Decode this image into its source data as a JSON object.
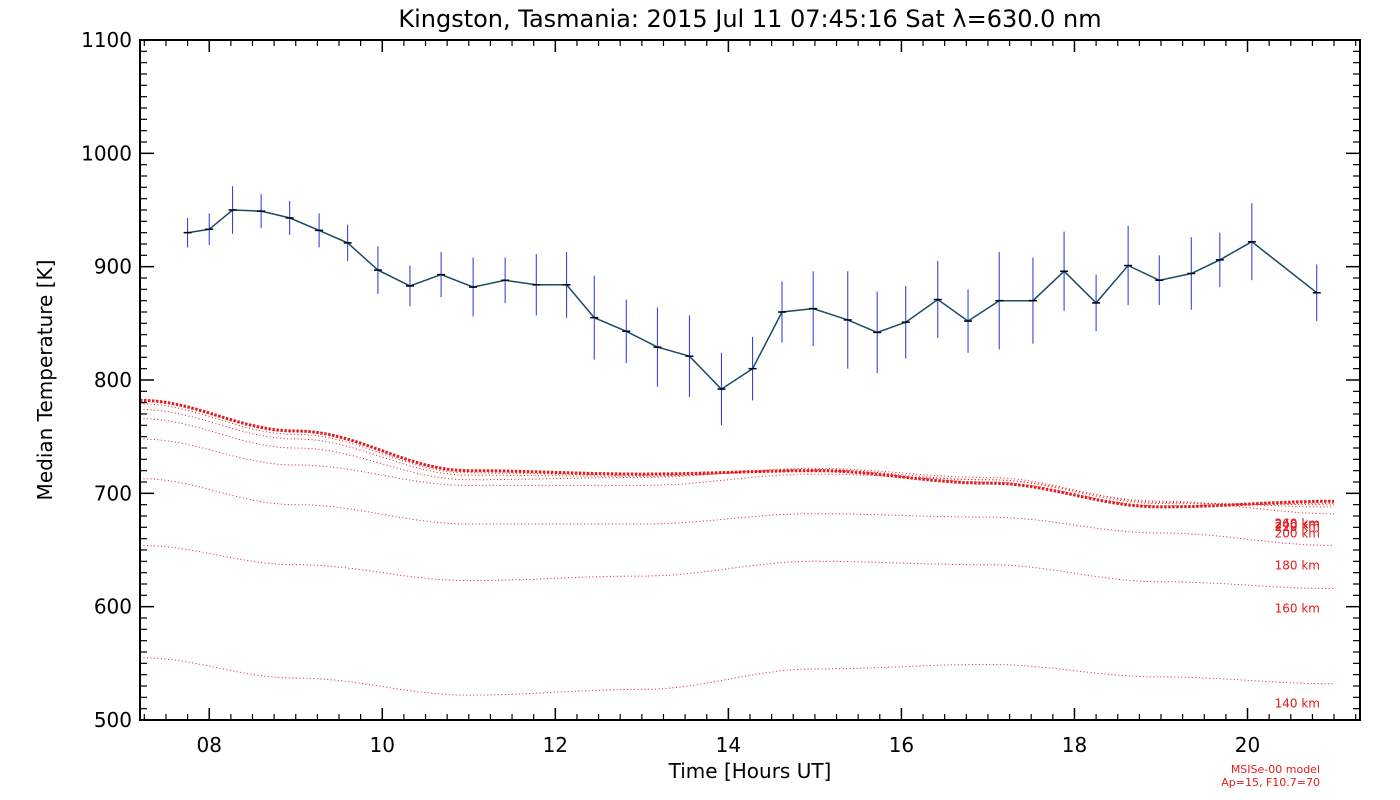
{
  "chart_data": {
    "type": "line",
    "title": "Kingston, Tasmania: 2015 Jul 11 07:45:16 Sat λ=630.0 nm",
    "xlabel": "Time [Hours UT]",
    "ylabel": "Median Temperature [K]",
    "xlim": [
      7.2,
      21.3
    ],
    "ylim": [
      500,
      1100
    ],
    "x_ticks": [
      8,
      10,
      12,
      14,
      16,
      18,
      20
    ],
    "x_tick_labels": [
      "08",
      "10",
      "12",
      "14",
      "16",
      "18",
      "20"
    ],
    "y_ticks": [
      500,
      600,
      700,
      800,
      900,
      1000,
      1100
    ],
    "y_tick_labels": [
      "500",
      "600",
      "700",
      "800",
      "900",
      "1000",
      "1100"
    ],
    "grid": false,
    "colors": {
      "observed_line": "#1a4a66",
      "error_bar": "#2233dd",
      "marker": "#000000",
      "model": "#e41a1c"
    },
    "series": [
      {
        "kind": "observed",
        "x": [
          7.75,
          8.0,
          8.27,
          8.6,
          8.93,
          9.27,
          9.6,
          9.95,
          10.32,
          10.68,
          11.05,
          11.42,
          11.78,
          12.13,
          12.45,
          12.82,
          13.18,
          13.55,
          13.92,
          14.28,
          14.62,
          14.98,
          15.38,
          15.72,
          16.05,
          16.42,
          16.77,
          17.13,
          17.52,
          17.88,
          18.25,
          18.62,
          18.98,
          19.35,
          19.68,
          20.05,
          20.8
        ],
        "values": [
          930,
          933,
          950,
          949,
          943,
          932,
          921,
          897,
          883,
          893,
          882,
          888,
          884,
          884,
          855,
          843,
          829,
          821,
          792,
          810,
          860,
          863,
          853,
          842,
          851,
          871,
          852,
          870,
          870,
          896,
          868,
          901,
          888,
          894,
          906,
          922,
          877
        ],
        "errors": [
          13,
          14,
          21,
          15,
          15,
          15,
          16,
          21,
          18,
          20,
          26,
          20,
          27,
          29,
          37,
          28,
          35,
          36,
          32,
          28,
          27,
          33,
          43,
          36,
          32,
          34,
          28,
          43,
          38,
          35,
          25,
          35,
          22,
          32,
          24,
          34,
          25
        ]
      },
      {
        "kind": "model",
        "name": "140 km",
        "x": [
          7.2,
          9.0,
          11.0,
          13.0,
          15.0,
          17.0,
          19.0,
          21.0
        ],
        "values": [
          555,
          537,
          522,
          527,
          545,
          549,
          538,
          532
        ]
      },
      {
        "kind": "model",
        "name": "160 km",
        "x": [
          7.2,
          9.0,
          11.0,
          13.0,
          15.0,
          17.0,
          19.0,
          21.0
        ],
        "values": [
          654,
          637,
          623,
          627,
          640,
          637,
          622,
          616
        ]
      },
      {
        "kind": "model",
        "name": "180 km",
        "x": [
          7.2,
          9.0,
          11.0,
          13.0,
          15.0,
          17.0,
          19.0,
          21.0
        ],
        "values": [
          713,
          690,
          673,
          673,
          682,
          679,
          665,
          654
        ]
      },
      {
        "kind": "model",
        "name": "200 km",
        "x": [
          7.2,
          9.0,
          11.0,
          13.0,
          15.0,
          17.0,
          19.0,
          21.0
        ],
        "values": [
          748,
          725,
          707,
          707,
          717,
          712,
          693,
          682
        ]
      },
      {
        "kind": "model",
        "name": "220 km",
        "x": [
          7.2,
          9.0,
          11.0,
          13.0,
          15.0,
          17.0,
          19.0,
          21.0
        ],
        "values": [
          766,
          740,
          712,
          714,
          722,
          714,
          692,
          688
        ]
      },
      {
        "kind": "model",
        "name": "240 km",
        "x": [
          7.2,
          9.0,
          11.0,
          13.0,
          15.0,
          17.0,
          19.0,
          21.0
        ],
        "values": [
          774,
          748,
          716,
          715,
          721,
          712,
          691,
          690
        ]
      },
      {
        "kind": "model",
        "name": "260 km",
        "x": [
          7.2,
          9.0,
          11.0,
          13.0,
          15.0,
          17.0,
          19.0,
          21.0
        ],
        "values": [
          779,
          752,
          718,
          716,
          720,
          710,
          689,
          691
        ]
      },
      {
        "kind": "model",
        "name": "",
        "x": [
          7.2,
          9.0,
          11.0,
          13.0,
          15.0,
          17.0,
          19.0,
          21.0
        ],
        "values": [
          782,
          755,
          720,
          717,
          720,
          709,
          688,
          693
        ],
        "style": "dense"
      }
    ],
    "model_note": [
      "MSISe-00 model",
      "Ap=15, F10.7=70"
    ]
  }
}
